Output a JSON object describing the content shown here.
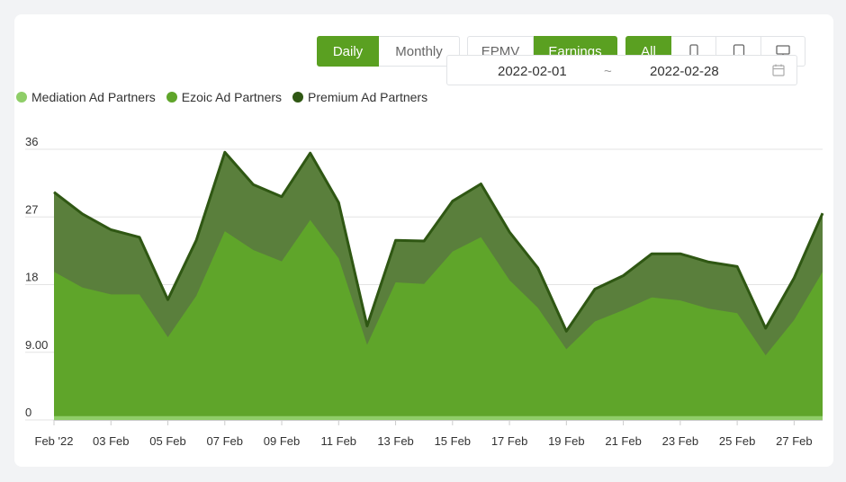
{
  "controls": {
    "period": [
      {
        "label": "Daily",
        "active": true
      },
      {
        "label": "Monthly",
        "active": false
      }
    ],
    "metric": [
      {
        "label": "EPMV",
        "active": false
      },
      {
        "label": "Earnings",
        "active": true
      }
    ],
    "device": [
      {
        "label": "All",
        "icon": null,
        "active": true
      },
      {
        "label": "",
        "icon": "mobile-icon",
        "active": false
      },
      {
        "label": "",
        "icon": "tablet-icon",
        "active": false
      },
      {
        "label": "",
        "icon": "desktop-icon",
        "active": false
      }
    ],
    "date_start": "2022-02-01",
    "date_separator": "~",
    "date_end": "2022-02-28",
    "calendar_icon": "calendar-icon"
  },
  "colors": {
    "accent": "#5aa021",
    "mediation": "#8fce68",
    "ezoic": "#5fa52a",
    "premium": "#3d6b1f",
    "premium_fill": "#5a7f3c",
    "premium_line": "#2f5713"
  },
  "chart_data": {
    "type": "area",
    "stacked": true,
    "x": [
      "2022-02-01",
      "2022-02-02",
      "2022-02-03",
      "2022-02-04",
      "2022-02-05",
      "2022-02-06",
      "2022-02-07",
      "2022-02-08",
      "2022-02-09",
      "2022-02-10",
      "2022-02-11",
      "2022-02-12",
      "2022-02-13",
      "2022-02-14",
      "2022-02-15",
      "2022-02-16",
      "2022-02-17",
      "2022-02-18",
      "2022-02-19",
      "2022-02-20",
      "2022-02-21",
      "2022-02-22",
      "2022-02-23",
      "2022-02-24",
      "2022-02-25",
      "2022-02-26",
      "2022-02-27",
      "2022-02-28"
    ],
    "xtick_labels": [
      "Feb '22",
      "03 Feb",
      "05 Feb",
      "07 Feb",
      "09 Feb",
      "11 Feb",
      "13 Feb",
      "15 Feb",
      "17 Feb",
      "19 Feb",
      "21 Feb",
      "23 Feb",
      "25 Feb",
      "27 Feb"
    ],
    "xtick_every": 2,
    "yticks": [
      "0",
      "9.00",
      "18",
      "27",
      "36"
    ],
    "ylim": [
      0,
      36
    ],
    "grid": true,
    "legend_position": "top-left",
    "series": [
      {
        "name": "Mediation Ad Partners",
        "color": "#8fce68",
        "values": [
          0.5,
          0.5,
          0.5,
          0.5,
          0.5,
          0.5,
          0.5,
          0.5,
          0.5,
          0.5,
          0.5,
          0.5,
          0.5,
          0.5,
          0.5,
          0.5,
          0.5,
          0.5,
          0.5,
          0.5,
          0.5,
          0.5,
          0.5,
          0.5,
          0.5,
          0.5,
          0.5,
          0.5
        ]
      },
      {
        "name": "Ezoic Ad Partners",
        "color": "#5fa52a",
        "values": [
          19.2,
          17.1,
          16.2,
          16.2,
          10.5,
          16.0,
          24.6,
          22.1,
          20.6,
          26.1,
          21.0,
          9.5,
          17.8,
          17.6,
          21.9,
          23.8,
          18.1,
          14.4,
          8.9,
          12.6,
          14.1,
          15.8,
          15.4,
          14.3,
          13.7,
          8.1,
          12.8,
          19.2
        ]
      },
      {
        "name": "Premium Ad Partners",
        "color": "#3d6b1f",
        "values": [
          10.6,
          9.8,
          8.6,
          7.6,
          5.0,
          7.4,
          10.5,
          8.7,
          8.6,
          8.9,
          7.4,
          2.5,
          5.6,
          5.7,
          6.7,
          7.1,
          6.4,
          5.3,
          2.4,
          4.3,
          4.6,
          5.8,
          6.2,
          6.2,
          6.2,
          3.6,
          5.6,
          7.8
        ]
      }
    ]
  }
}
